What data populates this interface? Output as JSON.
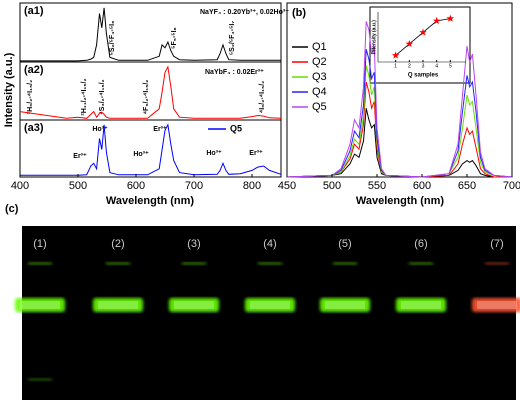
{
  "chart_data": [
    {
      "type": "line",
      "label": "(a1)",
      "title": "NaYF₄ : 0.20Yb³⁺, 0.02Ho³⁺",
      "ylabel": "Intensity (a.u.)",
      "annotations": [
        "⁵S₂/⁵F₄-⁵I₈",
        "⁵F₅-⁵I₈",
        "⁵S₂/⁵F₄-⁵I₇"
      ],
      "x": [
        400,
        480,
        500,
        515,
        522,
        527,
        532,
        537,
        541,
        545,
        549,
        555,
        570,
        620,
        640,
        645,
        650,
        655,
        660,
        665,
        675,
        700,
        740,
        745,
        750,
        755,
        760,
        780,
        800,
        810,
        820,
        830,
        850
      ],
      "values": [
        0.02,
        0.02,
        0.02,
        0.03,
        0.05,
        0.08,
        0.3,
        0.85,
        0.6,
        0.95,
        0.5,
        0.08,
        0.03,
        0.03,
        0.1,
        0.3,
        0.25,
        0.35,
        0.2,
        0.1,
        0.04,
        0.03,
        0.04,
        0.15,
        0.3,
        0.15,
        0.04,
        0.03,
        0.03,
        0.03,
        0.03,
        0.03,
        0.03
      ],
      "color": "#000000",
      "xlim": [
        400,
        850
      ],
      "ylim": [
        0,
        1
      ]
    },
    {
      "type": "line",
      "label": "(a2)",
      "title": "NaYbF₄ : 0.02Er³⁺",
      "annotations": [
        "²H₉/₂-⁴I₁₅/₂",
        "²H₁₁/₂-⁴I₁₅/₂",
        "⁴S₃/₂-⁴I₁₅/₂",
        "⁴F₉/₂-⁴I₁₅/₂",
        "⁴I₉/₂-⁴I₁₅/₂"
      ],
      "x": [
        400,
        480,
        500,
        515,
        522,
        527,
        532,
        537,
        541,
        545,
        549,
        555,
        570,
        620,
        640,
        645,
        650,
        655,
        660,
        665,
        675,
        700,
        740,
        745,
        750,
        755,
        760,
        780,
        800,
        810,
        820,
        830,
        850
      ],
      "values": [
        0.15,
        0.03,
        0.05,
        0.03,
        0.1,
        0.15,
        0.05,
        0.12,
        0.14,
        0.1,
        0.05,
        0.03,
        0.03,
        0.03,
        0.2,
        0.5,
        0.85,
        0.95,
        0.6,
        0.2,
        0.05,
        0.03,
        0.03,
        0.03,
        0.03,
        0.03,
        0.03,
        0.03,
        0.06,
        0.08,
        0.07,
        0.04,
        0.03
      ],
      "color": "#ff0000",
      "xlim": [
        400,
        850
      ],
      "ylim": [
        0,
        1
      ]
    },
    {
      "type": "line",
      "label": "(a3)",
      "xlabel": "Wavelength (nm)",
      "annotations": [
        "Er³⁺",
        "Ho³⁺",
        "Ho³⁺",
        "Er³⁺",
        "Ho³⁺",
        "Er³⁺"
      ],
      "x": [
        400,
        480,
        500,
        515,
        522,
        527,
        532,
        537,
        541,
        545,
        549,
        555,
        570,
        620,
        640,
        645,
        650,
        655,
        660,
        665,
        675,
        700,
        740,
        745,
        750,
        755,
        760,
        780,
        800,
        810,
        820,
        830,
        850
      ],
      "series": [
        {
          "name": "Q5",
          "color": "#0000ff",
          "values": [
            0.03,
            0.03,
            0.03,
            0.04,
            0.2,
            0.25,
            0.15,
            0.7,
            0.5,
            0.95,
            0.45,
            0.08,
            0.04,
            0.04,
            0.15,
            0.5,
            0.85,
            0.95,
            0.6,
            0.3,
            0.08,
            0.04,
            0.05,
            0.12,
            0.25,
            0.12,
            0.05,
            0.06,
            0.12,
            0.18,
            0.2,
            0.12,
            0.05
          ]
        }
      ],
      "xlim": [
        400,
        850
      ],
      "ylim": [
        0,
        1
      ],
      "xticks": [
        400,
        500,
        600,
        700,
        800
      ]
    },
    {
      "type": "line",
      "label": "(b)",
      "xlabel": "Wavelength (nm)",
      "x": [
        450,
        500,
        510,
        520,
        525,
        530,
        535,
        538,
        541,
        544,
        547,
        550,
        555,
        560,
        600,
        630,
        640,
        645,
        650,
        653,
        656,
        660,
        665,
        670,
        680,
        700
      ],
      "series": [
        {
          "name": "Q1",
          "color": "#000000",
          "values": [
            0,
            0.01,
            0.02,
            0.08,
            0.14,
            0.12,
            0.22,
            0.42,
            0.35,
            0.3,
            0.32,
            0.12,
            0.02,
            0.01,
            0,
            0.01,
            0.04,
            0.08,
            0.1,
            0.09,
            0.1,
            0.07,
            0.02,
            0.01,
            0,
            0
          ]
        },
        {
          "name": "Q2",
          "color": "#ff0000",
          "values": [
            0,
            0.01,
            0.03,
            0.11,
            0.2,
            0.17,
            0.32,
            0.58,
            0.52,
            0.42,
            0.46,
            0.17,
            0.03,
            0.01,
            0,
            0.01,
            0.08,
            0.2,
            0.3,
            0.26,
            0.28,
            0.18,
            0.05,
            0.02,
            0,
            0
          ]
        },
        {
          "name": "Q3",
          "color": "#66dd00",
          "values": [
            0,
            0.01,
            0.03,
            0.13,
            0.23,
            0.2,
            0.37,
            0.68,
            0.62,
            0.5,
            0.55,
            0.2,
            0.03,
            0.01,
            0,
            0.02,
            0.12,
            0.3,
            0.5,
            0.44,
            0.46,
            0.3,
            0.09,
            0.03,
            0.01,
            0
          ]
        },
        {
          "name": "Q4",
          "color": "#2222ff",
          "values": [
            0,
            0.01,
            0.04,
            0.16,
            0.28,
            0.24,
            0.44,
            0.78,
            0.72,
            0.6,
            0.64,
            0.24,
            0.04,
            0.01,
            0,
            0.02,
            0.16,
            0.4,
            0.62,
            0.55,
            0.58,
            0.4,
            0.12,
            0.04,
            0.01,
            0
          ]
        },
        {
          "name": "Q5",
          "color": "#bb44ee",
          "values": [
            0,
            0.01,
            0.05,
            0.2,
            0.35,
            0.3,
            0.55,
            0.95,
            0.9,
            0.75,
            0.8,
            0.3,
            0.05,
            0.01,
            0,
            0.02,
            0.2,
            0.5,
            0.8,
            0.7,
            0.75,
            0.5,
            0.15,
            0.05,
            0.01,
            0
          ]
        }
      ],
      "xlim": [
        450,
        700
      ],
      "ylim": [
        0,
        1.05
      ],
      "xticks": [
        450,
        500,
        550,
        600,
        650,
        700
      ]
    },
    {
      "type": "scatter",
      "xlabel": "Q samples",
      "ylabel": "Intensity (a.u.)",
      "x": [
        1,
        2,
        3,
        4,
        5
      ],
      "values": [
        0.1,
        0.35,
        0.6,
        0.85,
        0.9
      ],
      "color": "#ff0000",
      "line_color": "#000000",
      "xlim": [
        0,
        6
      ],
      "ylim": [
        0,
        1
      ],
      "xticks": [
        1,
        2,
        3,
        4,
        5
      ]
    }
  ],
  "photo": {
    "label": "(c)",
    "samples": [
      {
        "label": "(1)",
        "color": "#66ff00"
      },
      {
        "label": "(2)",
        "color": "#66ff00"
      },
      {
        "label": "(3)",
        "color": "#66ff00"
      },
      {
        "label": "(4)",
        "color": "#66ff00"
      },
      {
        "label": "(5)",
        "color": "#66ff00"
      },
      {
        "label": "(6)",
        "color": "#66ff00"
      },
      {
        "label": "(7)",
        "color": "#ff5533"
      }
    ]
  }
}
